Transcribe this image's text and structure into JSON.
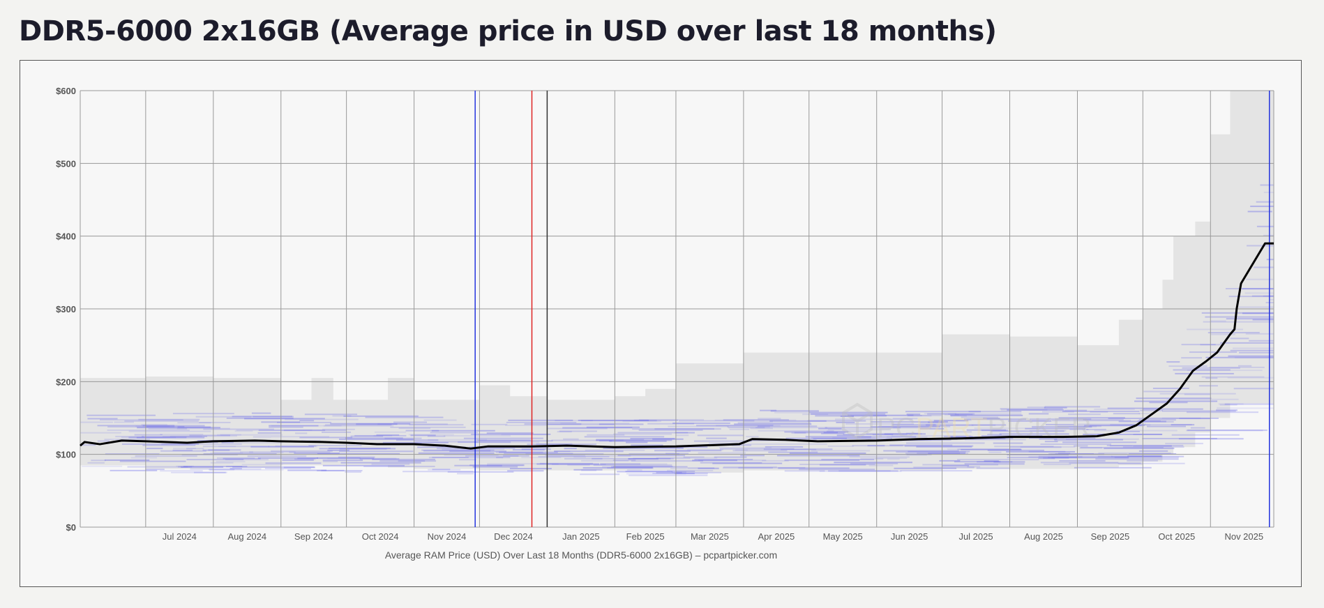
{
  "page": {
    "title": "DDR5-6000 2x16GB (Average price in USD over last 18 months)"
  },
  "chart_data": {
    "type": "line",
    "title": "DDR5-6000 2x16GB (Average price in USD over last 18 months)",
    "caption": "Average RAM Price (USD) Over Last 18 Months (DDR5-6000 2x16GB) – pcpartpicker.com",
    "xlabel": "",
    "ylabel": "",
    "xlim": [
      "2024-06-01",
      "2025-11-30"
    ],
    "ylim": [
      0,
      600
    ],
    "grid": true,
    "legend": "none",
    "y_ticks": [
      {
        "value": 0,
        "label": "$0"
      },
      {
        "value": 100,
        "label": "$100"
      },
      {
        "value": 200,
        "label": "$200"
      },
      {
        "value": 300,
        "label": "$300"
      },
      {
        "value": 400,
        "label": "$400"
      },
      {
        "value": 500,
        "label": "$500"
      },
      {
        "value": 600,
        "label": "$600"
      }
    ],
    "x_ticks": [
      {
        "date": "2024-07-01",
        "label": "Jul 2024"
      },
      {
        "date": "2024-08-01",
        "label": "Aug 2024"
      },
      {
        "date": "2024-09-01",
        "label": "Sep 2024"
      },
      {
        "date": "2024-10-01",
        "label": "Oct 2024"
      },
      {
        "date": "2024-11-01",
        "label": "Nov 2024"
      },
      {
        "date": "2024-12-01",
        "label": "Dec 2024"
      },
      {
        "date": "2025-01-01",
        "label": "Jan 2025"
      },
      {
        "date": "2025-02-01",
        "label": "Feb 2025"
      },
      {
        "date": "2025-03-01",
        "label": "Mar 2025"
      },
      {
        "date": "2025-04-01",
        "label": "Apr 2025"
      },
      {
        "date": "2025-05-01",
        "label": "May 2025"
      },
      {
        "date": "2025-06-01",
        "label": "Jun 2025"
      },
      {
        "date": "2025-07-01",
        "label": "Jul 2025"
      },
      {
        "date": "2025-08-01",
        "label": "Aug 2025"
      },
      {
        "date": "2025-09-01",
        "label": "Sep 2025"
      },
      {
        "date": "2025-10-01",
        "label": "Oct 2025"
      },
      {
        "date": "2025-11-01",
        "label": "Nov 2025"
      }
    ],
    "markers": [
      {
        "date": "2024-11-29",
        "color": "#2233dd"
      },
      {
        "date": "2024-12-25",
        "color": "#dd2222"
      },
      {
        "date": "2025-01-01",
        "color": "#333333"
      },
      {
        "date": "2025-11-28",
        "color": "#2233dd"
      }
    ],
    "series": [
      {
        "color": "#000000",
        "points": [
          [
            "2024-06-01",
            112
          ],
          [
            "2024-06-03",
            117
          ],
          [
            "2024-06-10",
            114
          ],
          [
            "2024-06-20",
            119
          ],
          [
            "2024-07-01",
            118
          ],
          [
            "2024-07-20",
            116
          ],
          [
            "2024-08-01",
            118
          ],
          [
            "2024-08-20",
            119
          ],
          [
            "2024-09-01",
            118
          ],
          [
            "2024-09-20",
            117
          ],
          [
            "2024-10-01",
            116
          ],
          [
            "2024-10-15",
            114
          ],
          [
            "2024-11-01",
            114
          ],
          [
            "2024-11-15",
            112
          ],
          [
            "2024-11-27",
            108
          ],
          [
            "2024-12-05",
            111
          ],
          [
            "2024-12-25",
            111
          ],
          [
            "2025-01-10",
            112
          ],
          [
            "2025-02-01",
            110
          ],
          [
            "2025-03-01",
            111
          ],
          [
            "2025-03-30",
            114
          ],
          [
            "2025-04-05",
            121
          ],
          [
            "2025-04-20",
            120
          ],
          [
            "2025-05-05",
            118
          ],
          [
            "2025-06-01",
            119
          ],
          [
            "2025-06-20",
            121
          ],
          [
            "2025-07-10",
            122
          ],
          [
            "2025-08-01",
            124
          ],
          [
            "2025-08-25",
            124
          ],
          [
            "2025-09-10",
            125
          ],
          [
            "2025-09-20",
            130
          ],
          [
            "2025-09-28",
            140
          ],
          [
            "2025-10-05",
            155
          ],
          [
            "2025-10-12",
            170
          ],
          [
            "2025-10-18",
            190
          ],
          [
            "2025-10-24",
            215
          ],
          [
            "2025-10-30",
            228
          ],
          [
            "2025-11-04",
            240
          ],
          [
            "2025-11-10",
            265
          ],
          [
            "2025-11-12",
            272
          ],
          [
            "2025-11-13",
            300
          ],
          [
            "2025-11-15",
            335
          ],
          [
            "2025-11-19",
            355
          ],
          [
            "2025-11-24",
            380
          ],
          [
            "2025-11-26",
            390
          ],
          [
            "2025-11-30",
            390
          ]
        ]
      }
    ],
    "price_range": {
      "color": "#e4e4e4",
      "points": [
        [
          "2024-06-01",
          205,
          85
        ],
        [
          "2024-07-01",
          207,
          80
        ],
        [
          "2024-08-01",
          205,
          82
        ],
        [
          "2024-09-01",
          175,
          85
        ],
        [
          "2024-09-15",
          205,
          85
        ],
        [
          "2024-09-25",
          175,
          85
        ],
        [
          "2024-10-20",
          205,
          82
        ],
        [
          "2024-11-01",
          175,
          80
        ],
        [
          "2024-12-01",
          195,
          78
        ],
        [
          "2024-12-15",
          180,
          78
        ],
        [
          "2025-01-01",
          175,
          78
        ],
        [
          "2025-02-01",
          180,
          78
        ],
        [
          "2025-02-15",
          190,
          78
        ],
        [
          "2025-03-01",
          225,
          75
        ],
        [
          "2025-04-01",
          240,
          78
        ],
        [
          "2025-07-01",
          265,
          80
        ],
        [
          "2025-08-01",
          262,
          80
        ],
        [
          "2025-09-01",
          250,
          82
        ],
        [
          "2025-09-20",
          285,
          85
        ],
        [
          "2025-10-01",
          300,
          90
        ],
        [
          "2025-10-10",
          340,
          100
        ],
        [
          "2025-10-15",
          400,
          110
        ],
        [
          "2025-10-25",
          420,
          130
        ],
        [
          "2025-11-01",
          540,
          150
        ],
        [
          "2025-11-10",
          600,
          170
        ],
        [
          "2025-11-30",
          600,
          180
        ]
      ]
    },
    "watermark": {
      "text_left": "PC",
      "text_accent": "PART",
      "text_right": "PICKER"
    }
  }
}
